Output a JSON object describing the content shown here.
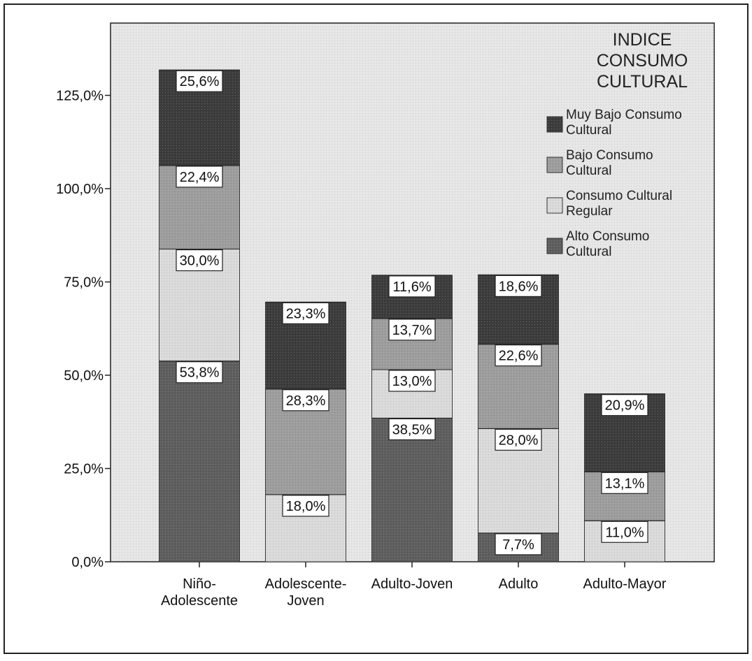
{
  "chart_data": {
    "type": "bar",
    "stacked": true,
    "categories": [
      "Niño-Adolescente",
      "Adolescente-Joven",
      "Adulto-Joven",
      "Adulto",
      "Adulto-Mayor"
    ],
    "category_lines": [
      [
        "Niño-",
        "Adolescente"
      ],
      [
        "Adolescente-",
        "Joven"
      ],
      [
        "Adulto-Joven"
      ],
      [
        "Adulto"
      ],
      [
        "Adulto-Mayor"
      ]
    ],
    "series": [
      {
        "name": "Alto Consumo Cultural",
        "name_lines": [
          "Alto Consumo",
          "Cultural"
        ],
        "color": "#5e5e5e",
        "values": [
          53.8,
          0,
          38.5,
          7.7,
          0
        ],
        "labels": [
          "53,8%",
          "",
          "38,5%",
          "7,7%",
          ""
        ]
      },
      {
        "name": "Consumo Cultural Regular",
        "name_lines": [
          "Consumo Cultural",
          "Regular"
        ],
        "color": "#dadada",
        "values": [
          30.0,
          18.0,
          13.0,
          28.0,
          11.0
        ],
        "labels": [
          "30,0%",
          "18,0%",
          "13,0%",
          "28,0%",
          "11,0%"
        ]
      },
      {
        "name": "Bajo Consumo Cultural",
        "name_lines": [
          "Bajo Consumo",
          "Cultural"
        ],
        "color": "#9d9d9d",
        "values": [
          22.4,
          28.3,
          13.7,
          22.6,
          13.1
        ],
        "labels": [
          "22,4%",
          "28,3%",
          "13,7%",
          "22,6%",
          "13,1%"
        ]
      },
      {
        "name": "Muy Bajo Consumo Cultural",
        "name_lines": [
          "Muy Bajo Consumo",
          "Cultural"
        ],
        "color": "#3c3c3c",
        "values": [
          25.6,
          23.3,
          11.6,
          18.6,
          20.9
        ],
        "labels": [
          "25,6%",
          "23,3%",
          "11,6%",
          "18,6%",
          "20,9%"
        ]
      }
    ],
    "legend_title": "INDICE CONSUMO CULTURAL",
    "legend_title_lines": [
      "INDICE",
      "CONSUMO",
      "CULTURAL"
    ],
    "legend_order": [
      3,
      2,
      1,
      0
    ],
    "legend_position": "top-right",
    "ylim": [
      0,
      150
    ],
    "yticks": [
      0,
      25,
      50,
      75,
      100,
      125
    ],
    "ytick_labels": [
      "0,0%",
      "25,0%",
      "50,0%",
      "75,0%",
      "100,0%",
      "125,0%"
    ],
    "xlabel": "",
    "ylabel": "",
    "grid": false,
    "background_color": "#e6e6e6"
  }
}
